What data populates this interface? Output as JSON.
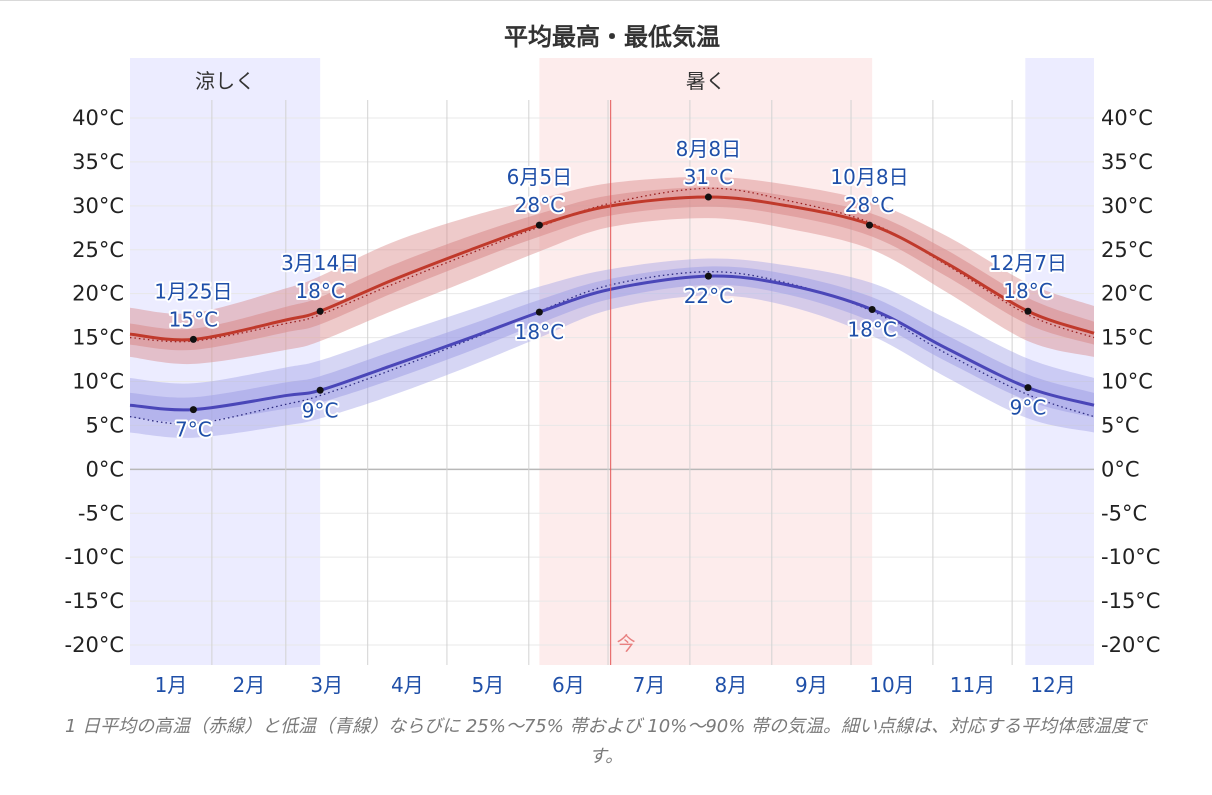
{
  "chart_data": {
    "type": "area",
    "title": "平均最高・最低気温",
    "ylim": [
      -20,
      40
    ],
    "y_ticks": [
      "40°C",
      "35°C",
      "30°C",
      "25°C",
      "20°C",
      "15°C",
      "10°C",
      "5°C",
      "0°C",
      "-5°C",
      "-10°C",
      "-15°C",
      "-20°C"
    ],
    "y_tick_values": [
      40,
      35,
      30,
      25,
      20,
      15,
      10,
      5,
      0,
      -5,
      -10,
      -15,
      -20
    ],
    "months": [
      "1月",
      "2月",
      "3月",
      "4月",
      "5月",
      "6月",
      "7月",
      "8月",
      "9月",
      "10月",
      "11月",
      "12月"
    ],
    "grid": true,
    "x_day_range": [
      1,
      366
    ],
    "seasons": [
      {
        "label": "涼しく",
        "start_day": 1,
        "end_day": 73,
        "color": "#ececff"
      },
      {
        "label": "",
        "start_day": 340,
        "end_day": 366,
        "color": "#ececff"
      },
      {
        "label": "暑く",
        "start_day": 156,
        "end_day": 282,
        "color": "#fdecec"
      }
    ],
    "today": {
      "label": "今",
      "day": 183
    },
    "series": [
      {
        "name": "高温",
        "color": "#c0392b",
        "x": [
          1,
          25,
          60,
          73,
          100,
          130,
          156,
          183,
          220,
          250,
          282,
          310,
          341,
          366
        ],
        "values": [
          15.4,
          14.8,
          17.0,
          18.0,
          21.5,
          25.0,
          27.8,
          30.0,
          31.0,
          30.0,
          27.8,
          23.5,
          18.0,
          15.5
        ],
        "feels_like": [
          15.0,
          14.6,
          16.6,
          17.6,
          21.0,
          24.6,
          27.6,
          30.3,
          32.0,
          30.6,
          28.0,
          23.3,
          17.6,
          15.0
        ],
        "band_25_75": [
          [
            14.2,
            16.6
          ],
          [
            13.6,
            16.0
          ],
          [
            15.6,
            18.5
          ],
          [
            16.5,
            19.6
          ],
          [
            20.0,
            23.2
          ],
          [
            23.6,
            26.6
          ],
          [
            26.5,
            29.1
          ],
          [
            28.9,
            31.2
          ],
          [
            29.9,
            32.1
          ],
          [
            28.9,
            31.1
          ],
          [
            26.5,
            29.1
          ],
          [
            22.0,
            25.0
          ],
          [
            16.5,
            19.5
          ],
          [
            14.2,
            16.8
          ]
        ],
        "band_10_90": [
          [
            12.8,
            18.4
          ],
          [
            12.0,
            17.8
          ],
          [
            13.6,
            20.6
          ],
          [
            14.6,
            22.0
          ],
          [
            18.0,
            25.8
          ],
          [
            21.6,
            28.8
          ],
          [
            24.8,
            30.8
          ],
          [
            27.6,
            32.6
          ],
          [
            28.6,
            33.3
          ],
          [
            27.4,
            32.4
          ],
          [
            25.0,
            30.4
          ],
          [
            20.2,
            26.6
          ],
          [
            14.6,
            21.2
          ],
          [
            12.8,
            18.6
          ]
        ]
      },
      {
        "name": "低温",
        "color": "#4a46b8",
        "x": [
          1,
          25,
          60,
          73,
          100,
          130,
          156,
          183,
          220,
          250,
          282,
          310,
          341,
          366
        ],
        "values": [
          7.3,
          6.8,
          8.4,
          9.0,
          11.8,
          15.0,
          17.9,
          20.5,
          22.0,
          21.0,
          18.2,
          13.8,
          9.3,
          7.3
        ],
        "feels_like": [
          6.0,
          5.2,
          7.4,
          8.4,
          11.3,
          14.8,
          18.0,
          21.0,
          22.5,
          21.2,
          18.0,
          13.2,
          8.5,
          6.0
        ],
        "band_25_75": [
          [
            5.9,
            8.7
          ],
          [
            5.4,
            8.2
          ],
          [
            6.9,
            9.9
          ],
          [
            7.6,
            10.6
          ],
          [
            10.2,
            13.4
          ],
          [
            13.5,
            16.5
          ],
          [
            16.6,
            19.3
          ],
          [
            19.4,
            21.7
          ],
          [
            21.0,
            23.1
          ],
          [
            19.9,
            22.2
          ],
          [
            16.8,
            19.6
          ],
          [
            12.3,
            15.3
          ],
          [
            7.8,
            10.8
          ],
          [
            5.9,
            8.7
          ]
        ],
        "band_10_90": [
          [
            4.2,
            10.4
          ],
          [
            3.6,
            9.8
          ],
          [
            5.0,
            11.6
          ],
          [
            5.8,
            12.4
          ],
          [
            8.4,
            15.2
          ],
          [
            11.8,
            18.2
          ],
          [
            15.0,
            20.8
          ],
          [
            18.2,
            22.8
          ],
          [
            19.8,
            24.0
          ],
          [
            18.6,
            23.2
          ],
          [
            15.2,
            21.2
          ],
          [
            10.5,
            17.2
          ],
          [
            5.8,
            12.6
          ],
          [
            4.2,
            10.4
          ]
        ]
      }
    ],
    "annotations": [
      {
        "day": 25,
        "date": "1月25日",
        "value_label": "15°C",
        "value": 14.8,
        "series": "高温",
        "pos": "above"
      },
      {
        "day": 73,
        "date": "3月14日",
        "value_label": "18°C",
        "value": 18.0,
        "series": "高温",
        "pos": "above"
      },
      {
        "day": 156,
        "date": "6月5日",
        "value_label": "28°C",
        "value": 27.8,
        "series": "高温",
        "pos": "above"
      },
      {
        "day": 220,
        "date": "8月8日",
        "value_label": "31°C",
        "value": 31.0,
        "series": "高温",
        "pos": "above"
      },
      {
        "day": 281,
        "date": "10月8日",
        "value_label": "28°C",
        "value": 27.8,
        "series": "高温",
        "pos": "above"
      },
      {
        "day": 341,
        "date": "12月7日",
        "value_label": "18°C",
        "value": 18.0,
        "series": "高温",
        "pos": "above"
      },
      {
        "day": 25,
        "date": "",
        "value_label": "7°C",
        "value": 6.8,
        "series": "低温",
        "pos": "below"
      },
      {
        "day": 73,
        "date": "",
        "value_label": "9°C",
        "value": 9.0,
        "series": "低温",
        "pos": "below"
      },
      {
        "day": 156,
        "date": "",
        "value_label": "18°C",
        "value": 17.9,
        "series": "低温",
        "pos": "below"
      },
      {
        "day": 220,
        "date": "",
        "value_label": "22°C",
        "value": 22.0,
        "series": "低温",
        "pos": "below"
      },
      {
        "day": 282,
        "date": "",
        "value_label": "18°C",
        "value": 18.2,
        "series": "低温",
        "pos": "below"
      },
      {
        "day": 341,
        "date": "",
        "value_label": "9°C",
        "value": 9.3,
        "series": "低温",
        "pos": "below"
      }
    ]
  },
  "caption": "1 日平均の高温（赤線）と低温（青線）ならびに 25%～75% 帯および 10%～90% 帯の気温。細い点線は、対応する平均体感温度です。"
}
